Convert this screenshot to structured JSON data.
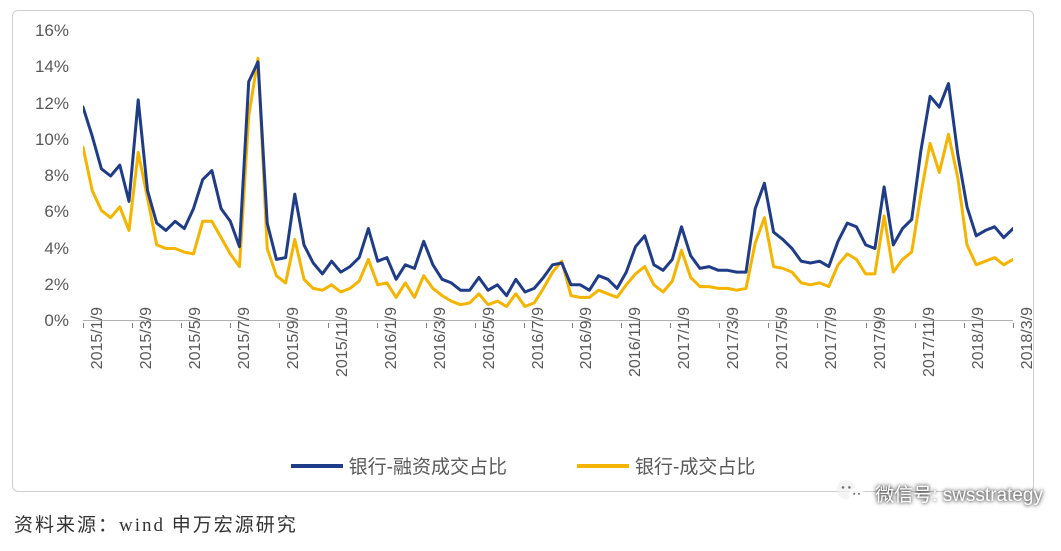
{
  "chart": {
    "type": "line",
    "background_color": "#ffffff",
    "border_color": "#cfcfcf",
    "grid_color": "#808080",
    "axis_color": "#808080",
    "tick_font_color": "#595959",
    "tick_fontsize": 17,
    "line_width": 3,
    "y_axis": {
      "min": 0,
      "max": 16,
      "step": 2,
      "suffix": "%",
      "ticks": [
        "0%",
        "2%",
        "4%",
        "6%",
        "8%",
        "10%",
        "12%",
        "14%",
        "16%"
      ]
    },
    "x_axis": {
      "labels": [
        "2015/1/9",
        "2015/3/9",
        "2015/5/9",
        "2015/7/9",
        "2015/9/9",
        "2015/11/9",
        "2016/1/9",
        "2016/3/9",
        "2016/5/9",
        "2016/7/9",
        "2016/9/9",
        "2016/11/9",
        "2017/1/9",
        "2017/3/9",
        "2017/5/9",
        "2017/7/9",
        "2017/9/9",
        "2017/11/9",
        "2018/1/9",
        "2018/3/9"
      ]
    },
    "legend": {
      "position": "bottom-center",
      "items": [
        {
          "label": "银行-融资成交占比",
          "color": "#1f3c88"
        },
        {
          "label": "银行-成交占比",
          "color": "#f5b400"
        }
      ]
    },
    "series": [
      {
        "name": "银行-融资成交占比",
        "color": "#1f3c88",
        "values": [
          11.8,
          10.2,
          8.4,
          8.0,
          8.6,
          6.6,
          12.2,
          7.2,
          5.4,
          5.0,
          5.5,
          5.1,
          6.2,
          7.8,
          8.3,
          6.2,
          5.5,
          4.1,
          13.2,
          14.3,
          5.4,
          3.4,
          3.5,
          7.0,
          4.2,
          3.2,
          2.6,
          3.3,
          2.7,
          3.0,
          3.5,
          5.1,
          3.3,
          3.5,
          2.3,
          3.1,
          2.9,
          4.4,
          3.1,
          2.3,
          2.1,
          1.7,
          1.7,
          2.4,
          1.7,
          2.0,
          1.4,
          2.3,
          1.6,
          1.8,
          2.4,
          3.1,
          3.2,
          2.0,
          2.0,
          1.7,
          2.5,
          2.3,
          1.8,
          2.7,
          4.1,
          4.7,
          3.1,
          2.8,
          3.4,
          5.2,
          3.6,
          2.9,
          3.0,
          2.8,
          2.8,
          2.7,
          2.7,
          6.2,
          7.6,
          4.9,
          4.5,
          4.0,
          3.3,
          3.2,
          3.3,
          3.0,
          4.4,
          5.4,
          5.2,
          4.2,
          4.0,
          7.4,
          4.2,
          5.1,
          5.6,
          9.4,
          12.4,
          11.8,
          13.1,
          9.2,
          6.3,
          4.7,
          5.0,
          5.2,
          4.6,
          5.1
        ]
      },
      {
        "name": "银行-成交占比",
        "color": "#f5b400",
        "values": [
          9.6,
          7.2,
          6.1,
          5.7,
          6.3,
          5.0,
          9.3,
          6.8,
          4.2,
          4.0,
          4.0,
          3.8,
          3.7,
          5.5,
          5.5,
          4.6,
          3.7,
          3.0,
          11.3,
          14.5,
          4.0,
          2.5,
          2.1,
          4.5,
          2.3,
          1.8,
          1.7,
          2.0,
          1.6,
          1.8,
          2.2,
          3.4,
          2.0,
          2.1,
          1.3,
          2.1,
          1.3,
          2.5,
          1.8,
          1.4,
          1.1,
          0.9,
          1.0,
          1.5,
          0.9,
          1.1,
          0.8,
          1.5,
          0.8,
          1.0,
          1.8,
          2.7,
          3.3,
          1.4,
          1.3,
          1.3,
          1.7,
          1.5,
          1.3,
          2.0,
          2.6,
          3.0,
          2.0,
          1.6,
          2.2,
          3.9,
          2.4,
          1.9,
          1.9,
          1.8,
          1.8,
          1.7,
          1.8,
          4.3,
          5.7,
          3.0,
          2.9,
          2.7,
          2.1,
          2.0,
          2.1,
          1.9,
          3.1,
          3.7,
          3.4,
          2.6,
          2.6,
          5.8,
          2.7,
          3.4,
          3.8,
          7.0,
          9.8,
          8.2,
          10.3,
          7.9,
          4.2,
          3.1,
          3.3,
          3.5,
          3.1,
          3.4
        ]
      }
    ]
  },
  "source_text": "资料来源：wind 申万宏源研究",
  "watermark": {
    "label": "微信号",
    "value": "swsstrategy"
  }
}
